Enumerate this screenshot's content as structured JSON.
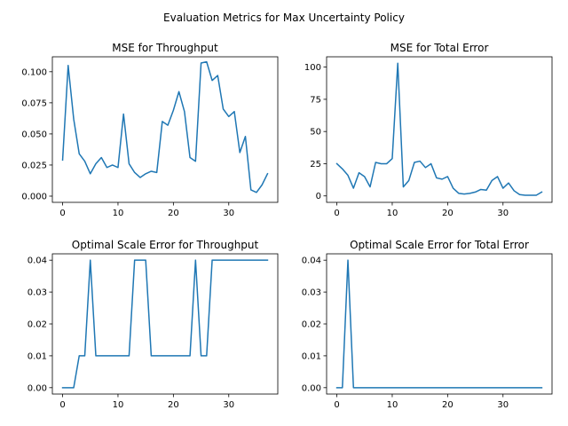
{
  "figure": {
    "suptitle": "Evaluation Metrics for Max Uncertainty Policy",
    "line_color": "#1f77b4"
  },
  "chart_data": [
    {
      "type": "line",
      "title": "MSE for Throughput",
      "xlabel": "",
      "ylabel": "",
      "xlim": [
        -1.85,
        38.85
      ],
      "ylim": [
        -0.005,
        0.112
      ],
      "xticks": [
        0,
        10,
        20,
        30
      ],
      "xtick_labels": [
        "0",
        "10",
        "20",
        "30"
      ],
      "yticks": [
        0.0,
        0.025,
        0.05,
        0.075,
        0.1
      ],
      "ytick_labels": [
        "0.000",
        "0.025",
        "0.050",
        "0.075",
        "0.100"
      ],
      "grid": false,
      "x": [
        0,
        1,
        2,
        3,
        4,
        5,
        6,
        7,
        8,
        9,
        10,
        11,
        12,
        13,
        14,
        15,
        16,
        17,
        18,
        19,
        20,
        21,
        22,
        23,
        24,
        25,
        26,
        27,
        28,
        29,
        30,
        31,
        32,
        33,
        34,
        35,
        36,
        37
      ],
      "values": [
        0.029,
        0.105,
        0.062,
        0.034,
        0.028,
        0.018,
        0.026,
        0.031,
        0.023,
        0.025,
        0.023,
        0.066,
        0.026,
        0.019,
        0.015,
        0.018,
        0.02,
        0.019,
        0.06,
        0.057,
        0.069,
        0.084,
        0.068,
        0.031,
        0.028,
        0.107,
        0.108,
        0.093,
        0.097,
        0.07,
        0.064,
        0.068,
        0.035,
        0.048,
        0.005,
        0.003,
        0.009,
        0.018
      ]
    },
    {
      "type": "line",
      "title": "MSE for Total Error",
      "xlabel": "",
      "ylabel": "",
      "xlim": [
        -1.85,
        38.85
      ],
      "ylim": [
        -5,
        108
      ],
      "xticks": [
        0,
        10,
        20,
        30
      ],
      "xtick_labels": [
        "0",
        "10",
        "20",
        "30"
      ],
      "yticks": [
        0,
        25,
        50,
        75,
        100
      ],
      "ytick_labels": [
        "0",
        "25",
        "50",
        "75",
        "100"
      ],
      "grid": false,
      "x": [
        0,
        1,
        2,
        3,
        4,
        5,
        6,
        7,
        8,
        9,
        10,
        11,
        12,
        13,
        14,
        15,
        16,
        17,
        18,
        19,
        20,
        21,
        22,
        23,
        24,
        25,
        26,
        27,
        28,
        29,
        30,
        31,
        32,
        33,
        34,
        35,
        36,
        37
      ],
      "values": [
        25,
        21,
        16,
        6,
        18,
        15,
        7,
        26,
        25,
        25,
        29,
        103,
        7,
        12,
        26,
        27,
        22,
        25,
        14,
        13,
        15,
        6,
        2,
        1.5,
        2,
        3,
        5,
        4.5,
        12,
        15,
        6,
        10,
        4,
        1,
        0.5,
        0.5,
        0.5,
        3
      ]
    },
    {
      "type": "line",
      "title": "Optimal Scale Error for Throughput",
      "xlabel": "",
      "ylabel": "",
      "xlim": [
        -1.85,
        38.85
      ],
      "ylim": [
        -0.002,
        0.042
      ],
      "xticks": [
        0,
        10,
        20,
        30
      ],
      "xtick_labels": [
        "0",
        "10",
        "20",
        "30"
      ],
      "yticks": [
        0.0,
        0.01,
        0.02,
        0.03,
        0.04
      ],
      "ytick_labels": [
        "0.00",
        "0.01",
        "0.02",
        "0.03",
        "0.04"
      ],
      "grid": false,
      "x": [
        0,
        1,
        2,
        3,
        4,
        5,
        6,
        7,
        8,
        9,
        10,
        11,
        12,
        13,
        14,
        15,
        16,
        17,
        18,
        19,
        20,
        21,
        22,
        23,
        24,
        25,
        26,
        27,
        28,
        29,
        30,
        31,
        32,
        33,
        34,
        35,
        36,
        37
      ],
      "values": [
        0,
        0,
        0,
        0.01,
        0.01,
        0.04,
        0.01,
        0.01,
        0.01,
        0.01,
        0.01,
        0.01,
        0.01,
        0.04,
        0.04,
        0.04,
        0.01,
        0.01,
        0.01,
        0.01,
        0.01,
        0.01,
        0.01,
        0.01,
        0.04,
        0.01,
        0.01,
        0.04,
        0.04,
        0.04,
        0.04,
        0.04,
        0.04,
        0.04,
        0.04,
        0.04,
        0.04,
        0.04
      ]
    },
    {
      "type": "line",
      "title": "Optimal Scale Error for Total Error",
      "xlabel": "",
      "ylabel": "",
      "xlim": [
        -1.85,
        38.85
      ],
      "ylim": [
        -0.002,
        0.042
      ],
      "xticks": [
        0,
        10,
        20,
        30
      ],
      "xtick_labels": [
        "0",
        "10",
        "20",
        "30"
      ],
      "yticks": [
        0.0,
        0.01,
        0.02,
        0.03,
        0.04
      ],
      "ytick_labels": [
        "0.00",
        "0.01",
        "0.02",
        "0.03",
        "0.04"
      ],
      "grid": false,
      "x": [
        0,
        1,
        2,
        3,
        4,
        5,
        6,
        7,
        8,
        9,
        10,
        11,
        12,
        13,
        14,
        15,
        16,
        17,
        18,
        19,
        20,
        21,
        22,
        23,
        24,
        25,
        26,
        27,
        28,
        29,
        30,
        31,
        32,
        33,
        34,
        35,
        36,
        37
      ],
      "values": [
        0,
        0,
        0.04,
        0,
        0,
        0,
        0,
        0,
        0,
        0,
        0,
        0,
        0,
        0,
        0,
        0,
        0,
        0,
        0,
        0,
        0,
        0,
        0,
        0,
        0,
        0,
        0,
        0,
        0,
        0,
        0,
        0,
        0,
        0,
        0,
        0,
        0,
        0
      ]
    }
  ]
}
